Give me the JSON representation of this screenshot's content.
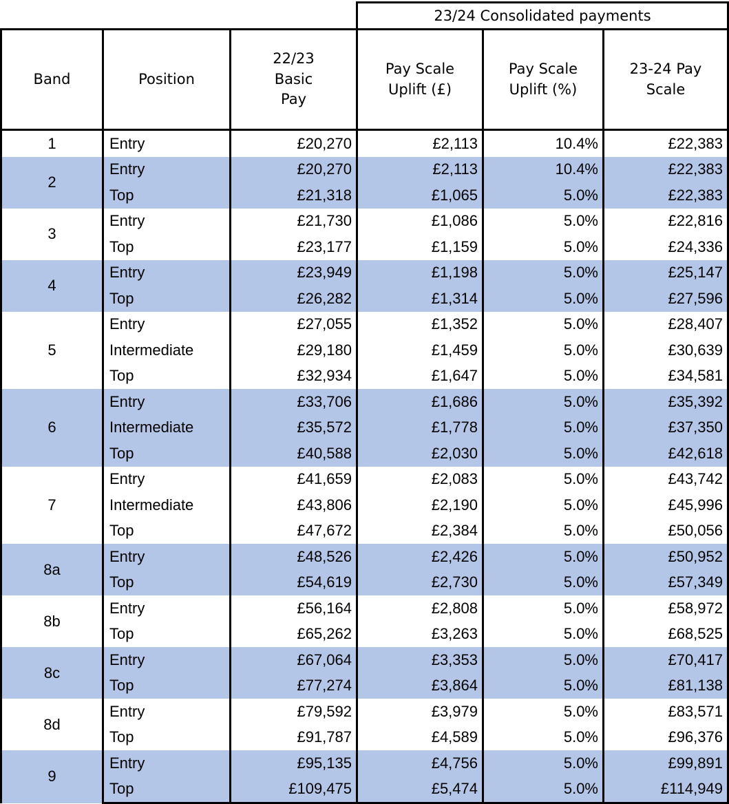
{
  "header": {
    "group": "23/24 Consolidated payments",
    "columns": [
      "Band",
      "Position",
      "22/23 Basic Pay",
      "Pay Scale Uplift (£)",
      "Pay Scale Uplift (%)",
      "23-24 Pay Scale"
    ]
  },
  "bands": [
    {
      "band": "1",
      "rows": [
        [
          "Entry",
          "£20,270",
          "£2,113",
          "10.4%",
          "£22,383"
        ]
      ]
    },
    {
      "band": "2",
      "rows": [
        [
          "Entry",
          "£20,270",
          "£2,113",
          "10.4%",
          "£22,383"
        ],
        [
          "Top",
          "£21,318",
          "£1,065",
          "5.0%",
          "£22,383"
        ]
      ]
    },
    {
      "band": "3",
      "rows": [
        [
          "Entry",
          "£21,730",
          "£1,086",
          "5.0%",
          "£22,816"
        ],
        [
          "Top",
          "£23,177",
          "£1,159",
          "5.0%",
          "£24,336"
        ]
      ]
    },
    {
      "band": "4",
      "rows": [
        [
          "Entry",
          "£23,949",
          "£1,198",
          "5.0%",
          "£25,147"
        ],
        [
          "Top",
          "£26,282",
          "£1,314",
          "5.0%",
          "£27,596"
        ]
      ]
    },
    {
      "band": "5",
      "rows": [
        [
          "Entry",
          "£27,055",
          "£1,352",
          "5.0%",
          "£28,407"
        ],
        [
          "Intermediate",
          "£29,180",
          "£1,459",
          "5.0%",
          "£30,639"
        ],
        [
          "Top",
          "£32,934",
          "£1,647",
          "5.0%",
          "£34,581"
        ]
      ]
    },
    {
      "band": "6",
      "rows": [
        [
          "Entry",
          "£33,706",
          "£1,686",
          "5.0%",
          "£35,392"
        ],
        [
          "Intermediate",
          "£35,572",
          "£1,778",
          "5.0%",
          "£37,350"
        ],
        [
          "Top",
          "£40,588",
          "£2,030",
          "5.0%",
          "£42,618"
        ]
      ]
    },
    {
      "band": "7",
      "rows": [
        [
          "Entry",
          "£41,659",
          "£2,083",
          "5.0%",
          "£43,742"
        ],
        [
          "Intermediate",
          "£43,806",
          "£2,190",
          "5.0%",
          "£45,996"
        ],
        [
          "Top",
          "£47,672",
          "£2,384",
          "5.0%",
          "£50,056"
        ]
      ]
    },
    {
      "band": "8a",
      "rows": [
        [
          "Entry",
          "£48,526",
          "£2,426",
          "5.0%",
          "£50,952"
        ],
        [
          "Top",
          "£54,619",
          "£2,730",
          "5.0%",
          "£57,349"
        ]
      ]
    },
    {
      "band": "8b",
      "rows": [
        [
          "Entry",
          "£56,164",
          "£2,808",
          "5.0%",
          "£58,972"
        ],
        [
          "Top",
          "£65,262",
          "£3,263",
          "5.0%",
          "£68,525"
        ]
      ]
    },
    {
      "band": "8c",
      "rows": [
        [
          "Entry",
          "£67,064",
          "£3,353",
          "5.0%",
          "£70,417"
        ],
        [
          "Top",
          "£77,274",
          "£3,864",
          "5.0%",
          "£81,138"
        ]
      ]
    },
    {
      "band": "8d",
      "rows": [
        [
          "Entry",
          "£79,592",
          "£3,979",
          "5.0%",
          "£83,571"
        ],
        [
          "Top",
          "£91,787",
          "£4,589",
          "5.0%",
          "£96,376"
        ]
      ]
    },
    {
      "band": "9",
      "rows": [
        [
          "Entry",
          "£95,135",
          "£4,756",
          "5.0%",
          "£99,891"
        ],
        [
          "Top",
          "£109,475",
          "£5,474",
          "5.0%",
          "£114,949"
        ]
      ]
    }
  ]
}
